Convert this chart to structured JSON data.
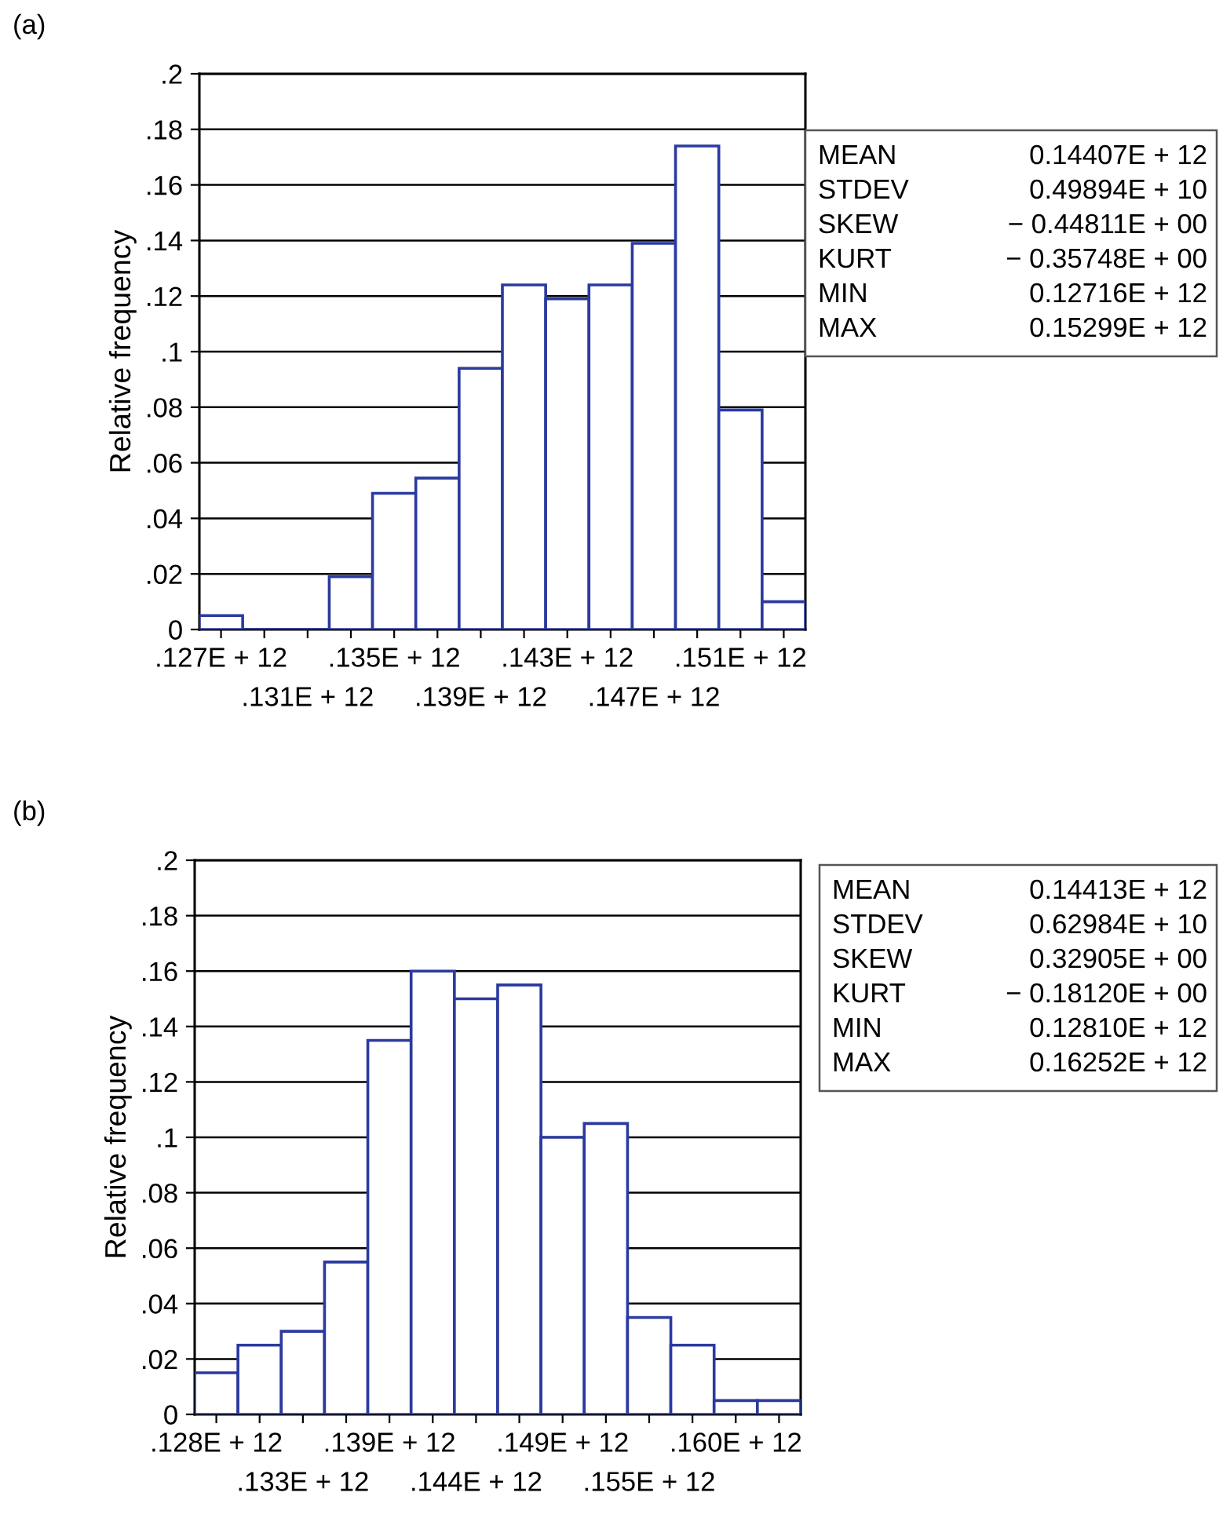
{
  "chart_data": [
    {
      "type": "bar",
      "title": "(a)",
      "ylabel": "Relative frequency",
      "color": "#2b3a9e",
      "categories": [
        ".127E + 12",
        null,
        ".131E + 12",
        null,
        ".135E + 12",
        null,
        ".139E + 12",
        null,
        ".143E + 12",
        null,
        ".147E + 12",
        null,
        ".151E + 12",
        null
      ],
      "values": [
        0.005,
        0,
        0,
        0.019,
        0.049,
        0.0545,
        0.094,
        0.124,
        0.119,
        0.124,
        0.139,
        0.174,
        0.079,
        0.01
      ],
      "ylim": [
        0,
        0.2
      ],
      "yticks": [
        0,
        {
          "value": 0.02,
          "label": ".02"
        },
        {
          "value": 0.04,
          "label": ".04"
        },
        {
          "value": 0.06,
          "label": ".06"
        },
        {
          "value": 0.08,
          "label": ".08"
        },
        {
          "value": 0.1,
          "label": ".1"
        },
        {
          "value": 0.12,
          "label": ".12"
        },
        {
          "value": 0.14,
          "label": ".14"
        },
        {
          "value": 0.16,
          "label": ".16"
        },
        {
          "value": 0.18,
          "label": ".18"
        },
        {
          "value": 0.2,
          "label": ".2"
        }
      ],
      "grid": "y",
      "annotations": [
        "MEAN 0.14407E + 12",
        "STDEV 0.49894E + 10",
        "SKEW − 0.44811E + 00",
        "KURT − 0.35748E + 00",
        "MIN 0.12716E + 12",
        "MAX 0.15299E + 12"
      ]
    },
    {
      "type": "bar",
      "title": "(b)",
      "ylabel": "Relative frequency",
      "color": "#2b3a9e",
      "categories": [
        ".128E + 12",
        null,
        ".133E + 12",
        null,
        ".139E + 12",
        null,
        ".144E + 12",
        null,
        ".149E + 12",
        null,
        ".155E + 12",
        null,
        ".160E + 12",
        null
      ],
      "values": [
        0.015,
        0.025,
        0.03,
        0.055,
        0.135,
        0.16,
        0.15,
        0.155,
        0.1,
        0.105,
        0.035,
        0.025,
        0.005,
        0.005
      ],
      "ylim": [
        0,
        0.2
      ],
      "yticks": [
        0,
        {
          "value": 0.02,
          "label": ".02"
        },
        {
          "value": 0.04,
          "label": ".04"
        },
        {
          "value": 0.06,
          "label": ".06"
        },
        {
          "value": 0.08,
          "label": ".08"
        },
        {
          "value": 0.1,
          "label": ".1"
        },
        {
          "value": 0.12,
          "label": ".12"
        },
        {
          "value": 0.14,
          "label": ".14"
        },
        {
          "value": 0.16,
          "label": ".16"
        },
        {
          "value": 0.18,
          "label": ".18"
        },
        {
          "value": 0.2,
          "label": ".2"
        }
      ],
      "grid": "y",
      "annotations": [
        "MEAN 0.14413E + 12",
        "STDEV 0.62984E + 10",
        "SKEW 0.32905E + 00",
        "KURT − 0.18120E + 00",
        "MIN 0.12810E + 12",
        "MAX 0.16252E + 12"
      ]
    }
  ]
}
